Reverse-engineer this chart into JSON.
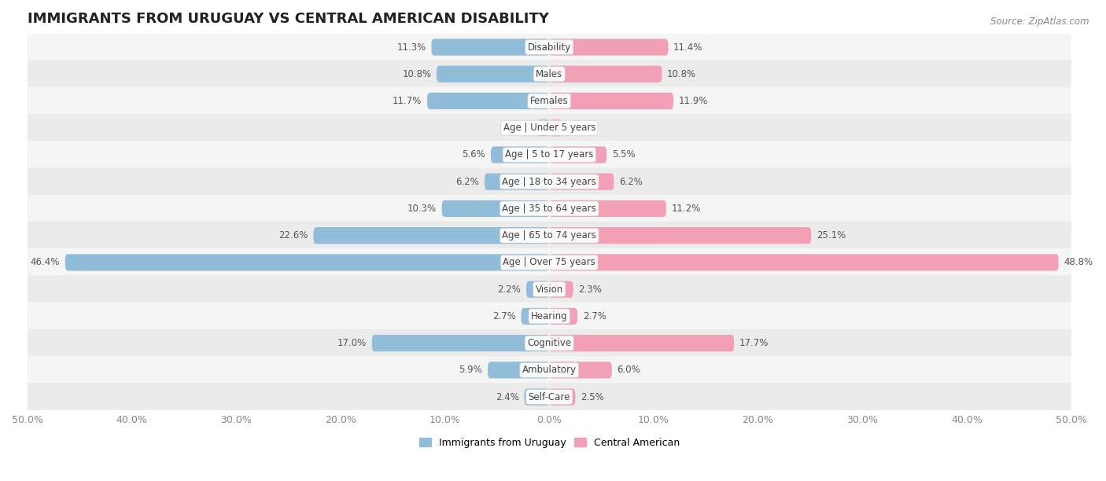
{
  "title": "IMMIGRANTS FROM URUGUAY VS CENTRAL AMERICAN DISABILITY",
  "source": "Source: ZipAtlas.com",
  "categories": [
    "Disability",
    "Males",
    "Females",
    "Age | Under 5 years",
    "Age | 5 to 17 years",
    "Age | 18 to 34 years",
    "Age | 35 to 64 years",
    "Age | 65 to 74 years",
    "Age | Over 75 years",
    "Vision",
    "Hearing",
    "Cognitive",
    "Ambulatory",
    "Self-Care"
  ],
  "uruguay_values": [
    11.3,
    10.8,
    11.7,
    1.2,
    5.6,
    6.2,
    10.3,
    22.6,
    46.4,
    2.2,
    2.7,
    17.0,
    5.9,
    2.4
  ],
  "central_american_values": [
    11.4,
    10.8,
    11.9,
    1.2,
    5.5,
    6.2,
    11.2,
    25.1,
    48.8,
    2.3,
    2.7,
    17.7,
    6.0,
    2.5
  ],
  "uruguay_color": "#92bdd9",
  "central_american_color": "#f2a0b5",
  "bar_height": 0.62,
  "x_max": 50.0,
  "row_colors": [
    "#f5f5f5",
    "#ebebeb"
  ],
  "title_fontsize": 13,
  "label_fontsize": 8.5,
  "value_fontsize": 8.5,
  "tick_fontsize": 9,
  "legend_fontsize": 9
}
